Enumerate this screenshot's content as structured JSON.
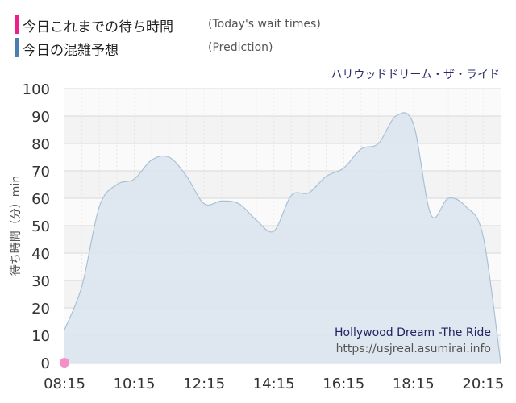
{
  "legend": {
    "today": {
      "label": "今日これまでの待ち時間",
      "sublabel": "(Today's wait times)",
      "color": "#ee1e8c"
    },
    "prediction": {
      "label": "今日の混雑予想",
      "sublabel": "(Prediction)",
      "color": "#4a7fb0"
    }
  },
  "ride_name_ja": "ハリウッドドリーム・ザ・ライド",
  "ride_name_en": "Hollywood Dream -The Ride",
  "site_url": "https://usjreal.asumirai.info",
  "colors": {
    "area_fill": "#dbe6ee",
    "area_line": "#a9c1d5",
    "today_marker": "#f48fc8",
    "plot_bg_a": "#f3f3f3",
    "plot_bg_b": "#fafafa"
  },
  "chart_data": {
    "type": "area",
    "ylabel": "待ち時間（分）min",
    "xlabel": "",
    "x_tick_labels": [
      "08:15",
      "10:15",
      "12:15",
      "14:15",
      "16:15",
      "18:15",
      "20:15"
    ],
    "x_tick_hours": [
      8.25,
      10.25,
      12.25,
      14.25,
      16.25,
      18.25,
      20.25
    ],
    "xlim": [
      8.25,
      20.75
    ],
    "ylim": [
      0,
      100
    ],
    "y_ticks": [
      0,
      10,
      20,
      30,
      40,
      50,
      60,
      70,
      80,
      90,
      100
    ],
    "grid": true,
    "series": [
      {
        "name": "今日の混雑予想",
        "x": [
          8.25,
          8.75,
          9.25,
          9.75,
          10.25,
          10.75,
          11.25,
          11.75,
          12.25,
          12.75,
          13.25,
          13.75,
          14.25,
          14.75,
          15.25,
          15.75,
          16.25,
          16.75,
          17.25,
          17.75,
          18.25,
          18.75,
          19.25,
          19.75,
          20.25,
          20.75
        ],
        "y": [
          12,
          28,
          57,
          65,
          67,
          74,
          75,
          68,
          58,
          59,
          58,
          52,
          48,
          61,
          62,
          68,
          71,
          78,
          80,
          90,
          87,
          54,
          60,
          57,
          46,
          0
        ]
      },
      {
        "name": "今日これまでの待ち時間",
        "x": [
          8.25
        ],
        "y": [
          0
        ]
      }
    ]
  }
}
